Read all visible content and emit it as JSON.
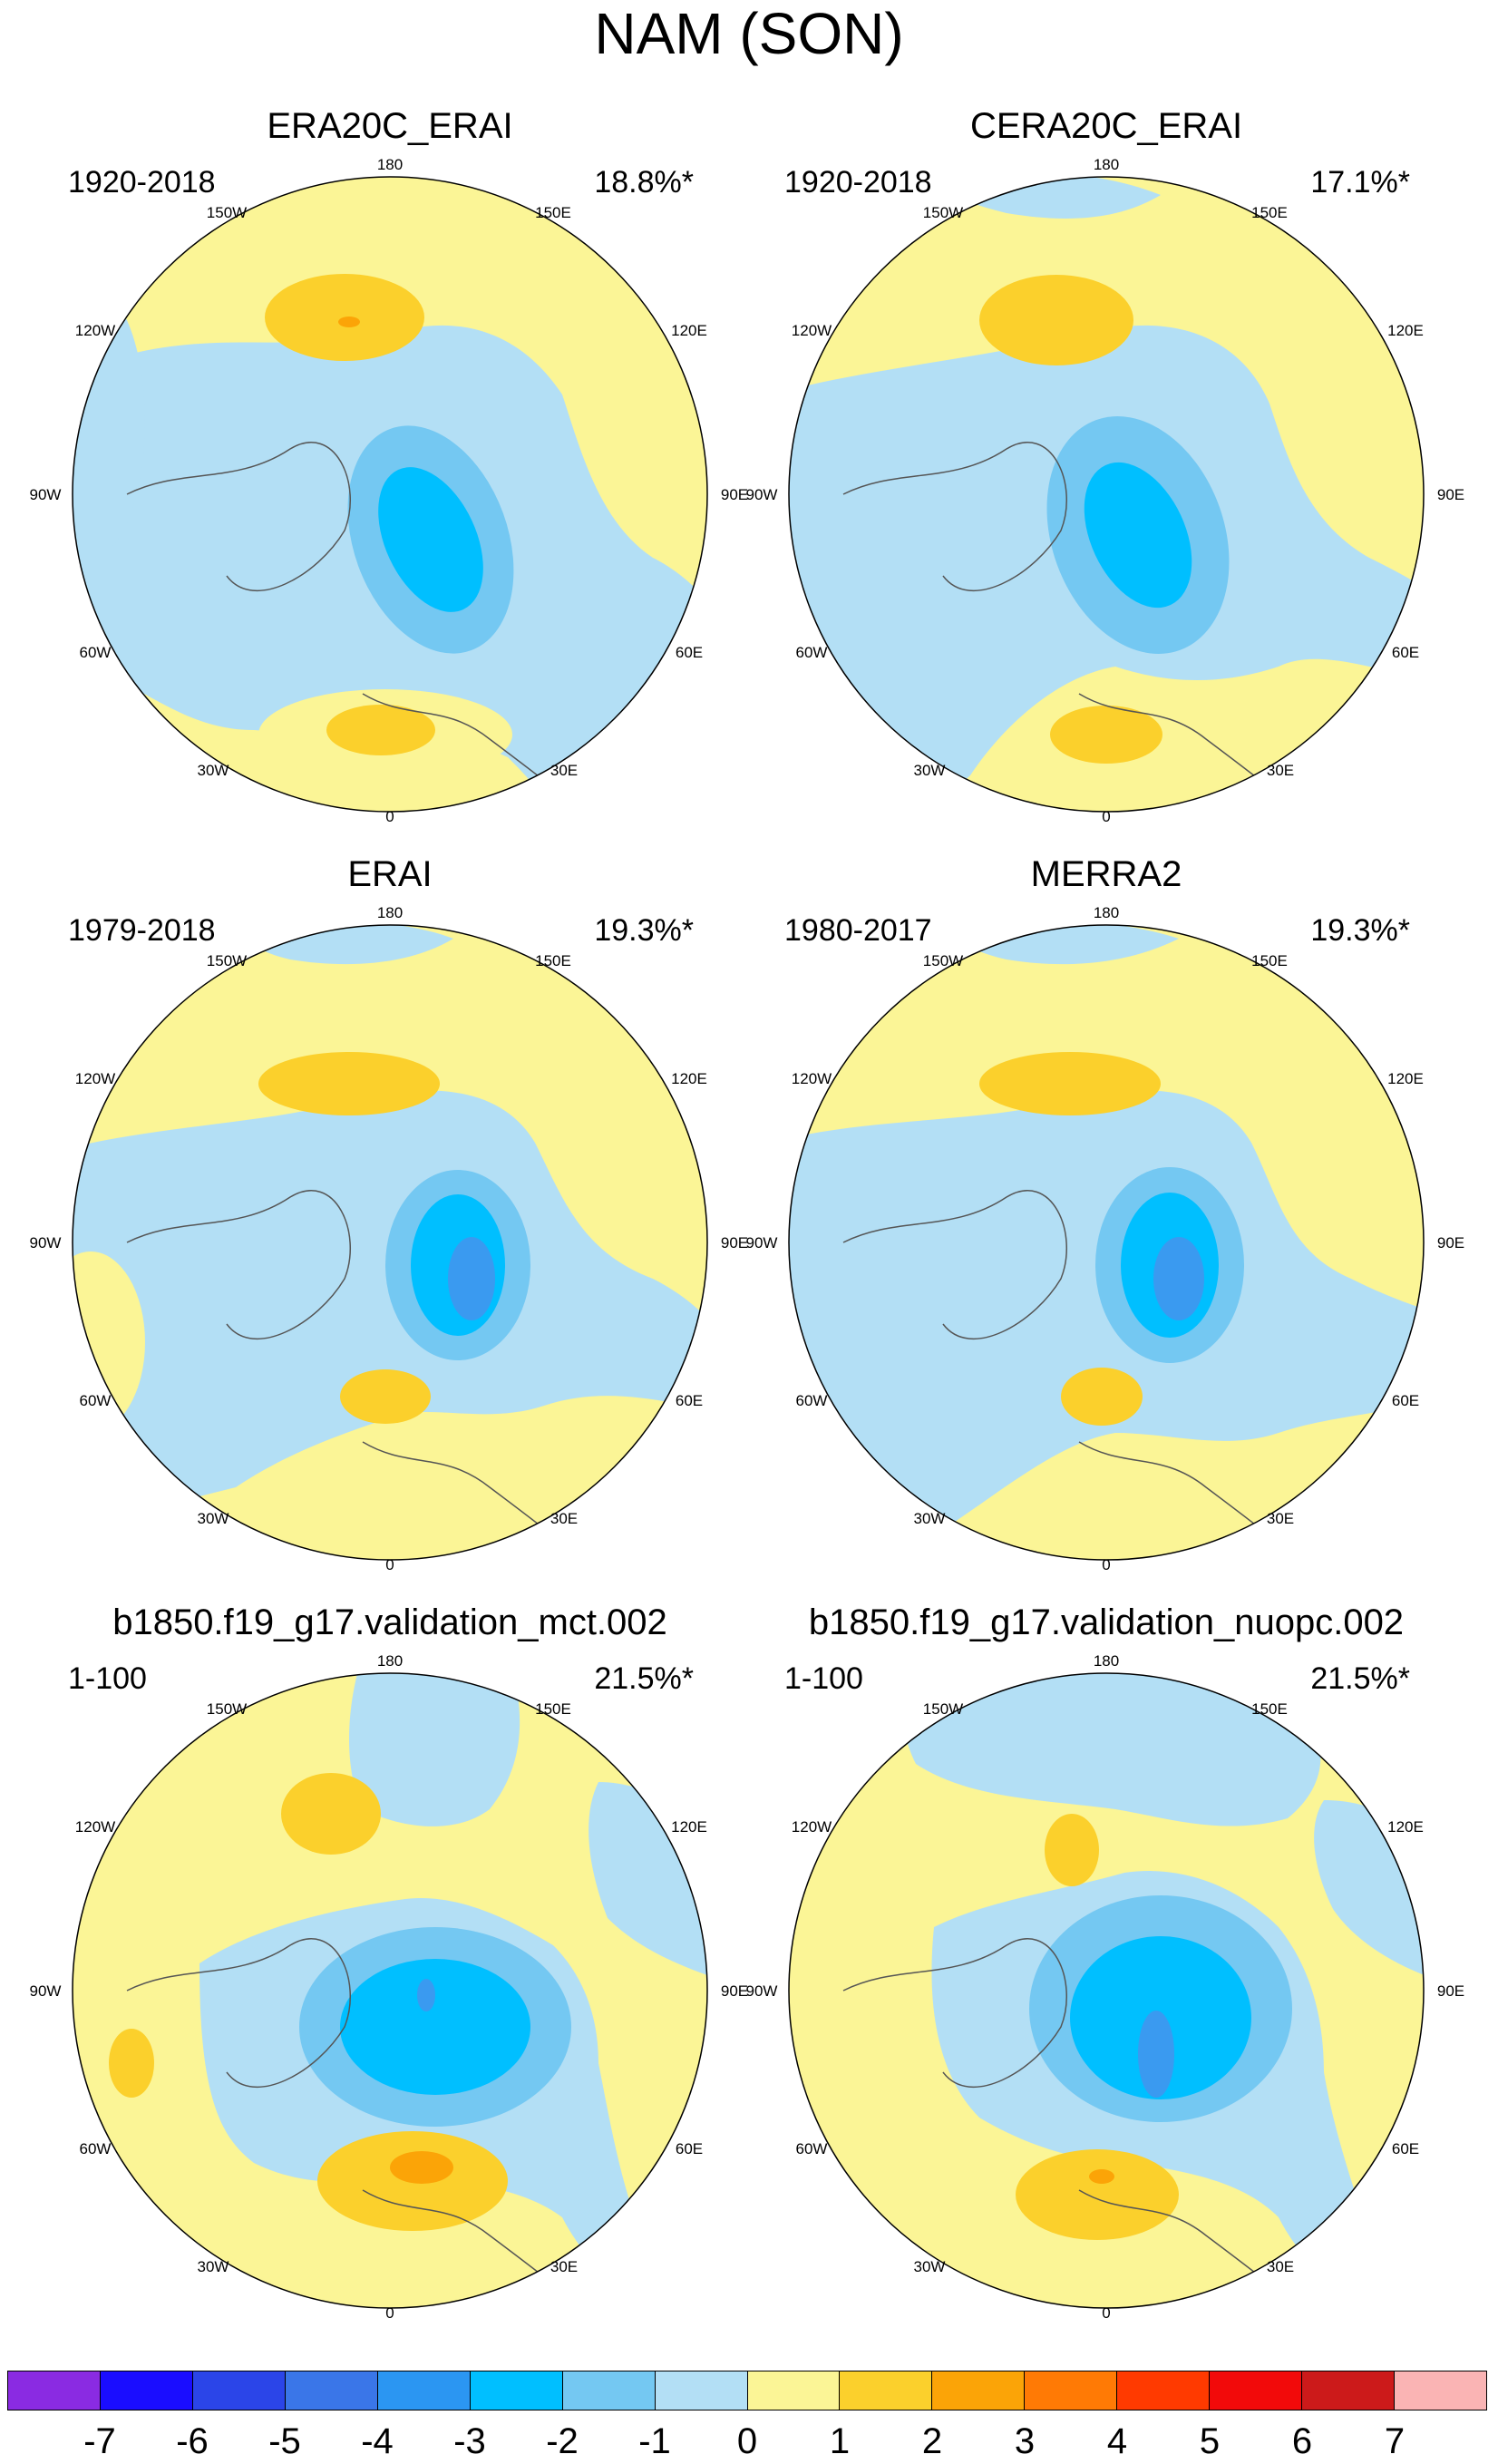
{
  "title": "NAM (SON)",
  "panels": [
    {
      "title": "ERA20C_ERAI",
      "years": "1920-2018",
      "variance": "18.8%*"
    },
    {
      "title": "CERA20C_ERAI",
      "years": "1920-2018",
      "variance": "17.1%*"
    },
    {
      "title": "ERAI",
      "years": "1979-2018",
      "variance": "19.3%*"
    },
    {
      "title": "MERRA2",
      "years": "1980-2017",
      "variance": "19.3%*"
    },
    {
      "title": "b1850.f19_g17.validation_mct.002",
      "years": "1-100",
      "variance": "21.5%*"
    },
    {
      "title": "b1850.f19_g17.validation_nuopc.002",
      "years": "1-100",
      "variance": "21.5%*"
    }
  ],
  "longitude_labels": {
    "top": "180",
    "p150w": "150W",
    "p150e": "150E",
    "p120w": "120W",
    "p120e": "120E",
    "p90w": "90W",
    "p90e": "90E",
    "p60w": "60W",
    "p60e": "60E",
    "p30w": "30W",
    "p30e": "30E",
    "bottom": "0"
  },
  "colorbar": {
    "colors": [
      "#8a2be2",
      "#1a0dff",
      "#2b45e8",
      "#3a76e8",
      "#2b96f2",
      "#00bfff",
      "#74c8f2",
      "#b3dff5",
      "#fbf596",
      "#fbd02c",
      "#fba407",
      "#ff7a05",
      "#ff3a00",
      "#f20a0a",
      "#cc1a1a",
      "#fab4b4"
    ],
    "labels": [
      "-7",
      "-6",
      "-5",
      "-4",
      "-3",
      "-2",
      "-1",
      "0",
      "1",
      "2",
      "3",
      "4",
      "5",
      "6",
      "7"
    ]
  },
  "legend_colors": {
    "land_outline": "#555555",
    "yellow": "#fbf596",
    "light_blue": "#b3dff5",
    "mid_blue": "#74c8f2",
    "cyan": "#00bfff",
    "gold": "#fbd02c",
    "orange": "#fba407"
  }
}
